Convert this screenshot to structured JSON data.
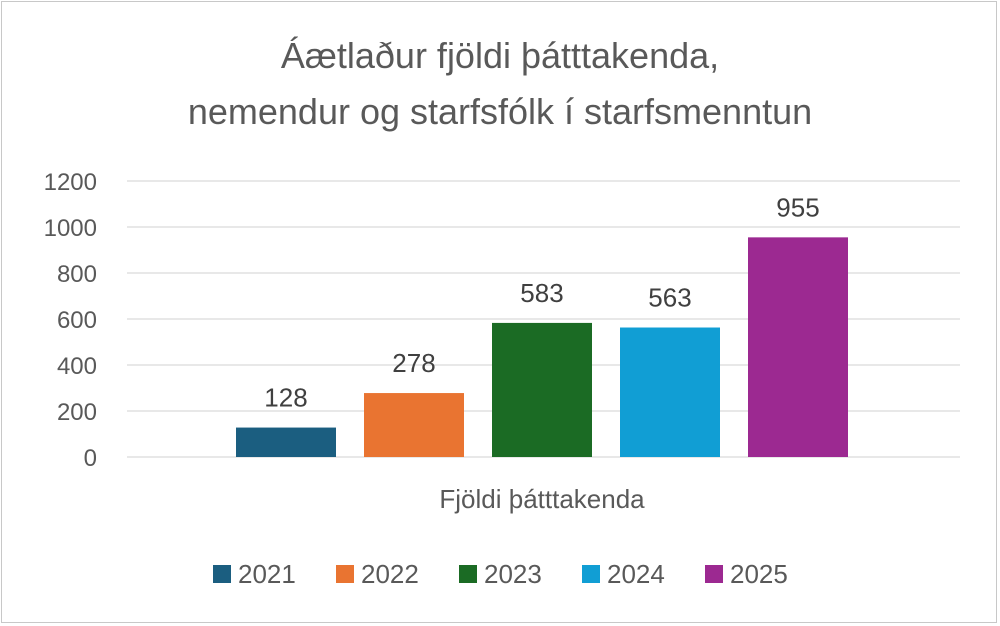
{
  "chart_data": {
    "type": "bar",
    "title_lines": [
      "Áætlaður fjöldi þátttakenda,",
      "nemendur og starfsfólk í starfsmenntun"
    ],
    "categories": [
      "Fjöldi þátttakenda"
    ],
    "xlabel": "Fjöldi þátttakenda",
    "ylabel": "",
    "ylim": [
      0,
      1200
    ],
    "yticks": [
      "0",
      "200",
      "400",
      "600",
      "800",
      "1000",
      "1200"
    ],
    "ytick_values": [
      0,
      200,
      400,
      600,
      800,
      1000,
      1200
    ],
    "grid": true,
    "legend_position": "bottom",
    "series": [
      {
        "name": "2021",
        "values": [
          128
        ],
        "label": "128",
        "color": "#1b5e80"
      },
      {
        "name": "2022",
        "values": [
          278
        ],
        "label": "278",
        "color": "#e97431"
      },
      {
        "name": "2023",
        "values": [
          583
        ],
        "label": "583",
        "color": "#1b6b24"
      },
      {
        "name": "2024",
        "values": [
          563
        ],
        "label": "563",
        "color": "#119ed4"
      },
      {
        "name": "2025",
        "values": [
          955
        ],
        "label": "955",
        "color": "#9c2991"
      }
    ]
  }
}
